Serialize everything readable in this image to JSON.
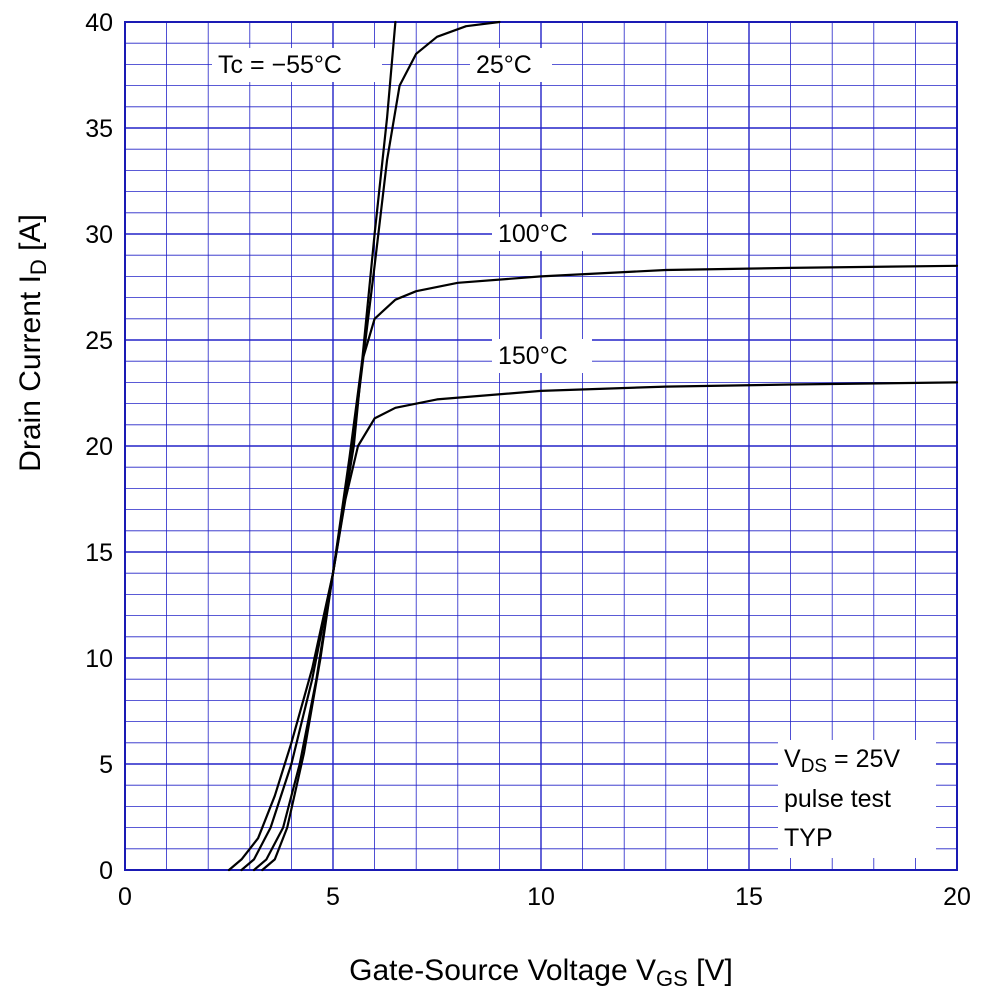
{
  "chart_data": {
    "type": "line",
    "xlabel": {
      "main": "Gate-Source Voltage  V",
      "sub": "GS",
      "unit": "  [V]"
    },
    "ylabel": {
      "main": "Drain Current  I",
      "sub": "D",
      "unit": " [A]"
    },
    "xlim": [
      0,
      20
    ],
    "ylim": [
      0,
      40
    ],
    "x_ticks": [
      "0",
      "5",
      "10",
      "15",
      "20"
    ],
    "y_ticks": [
      "0",
      "5",
      "10",
      "15",
      "20",
      "25",
      "30",
      "35",
      "40"
    ],
    "grid": true,
    "colors": {
      "grid": "#2323c8",
      "curve": "#000000"
    },
    "series": [
      {
        "name": "Tc = −55°C",
        "points": [
          [
            2.5,
            0
          ],
          [
            2.8,
            0.5
          ],
          [
            3.2,
            1.5
          ],
          [
            3.6,
            3.5
          ],
          [
            4.0,
            6.0
          ],
          [
            4.5,
            9.5
          ],
          [
            5.0,
            14.0
          ],
          [
            5.5,
            20.0
          ],
          [
            6.0,
            30.0
          ],
          [
            6.3,
            35.5
          ],
          [
            6.5,
            40.0
          ]
        ]
      },
      {
        "name": "25°C",
        "points": [
          [
            2.8,
            0
          ],
          [
            3.1,
            0.5
          ],
          [
            3.5,
            2.0
          ],
          [
            4.0,
            5.0
          ],
          [
            4.5,
            9.0
          ],
          [
            5.0,
            14.0
          ],
          [
            5.5,
            20.5
          ],
          [
            6.0,
            28.5
          ],
          [
            6.3,
            33.5
          ],
          [
            6.6,
            37.0
          ],
          [
            7.0,
            38.5
          ],
          [
            7.5,
            39.3
          ],
          [
            8.2,
            39.8
          ],
          [
            9.0,
            40.0
          ]
        ]
      },
      {
        "name": "100°C",
        "points": [
          [
            3.1,
            0
          ],
          [
            3.4,
            0.5
          ],
          [
            3.8,
            2.0
          ],
          [
            4.2,
            5.0
          ],
          [
            4.6,
            9.0
          ],
          [
            5.0,
            14.0
          ],
          [
            5.4,
            19.5
          ],
          [
            5.7,
            24.0
          ],
          [
            6.0,
            26.0
          ],
          [
            6.5,
            26.9
          ],
          [
            7.0,
            27.3
          ],
          [
            8.0,
            27.7
          ],
          [
            10.0,
            28.0
          ],
          [
            13.0,
            28.3
          ],
          [
            16.0,
            28.4
          ],
          [
            20.0,
            28.5
          ]
        ]
      },
      {
        "name": "150°C",
        "points": [
          [
            3.3,
            0
          ],
          [
            3.6,
            0.5
          ],
          [
            3.9,
            2.0
          ],
          [
            4.3,
            5.5
          ],
          [
            4.7,
            10.0
          ],
          [
            5.0,
            14.0
          ],
          [
            5.3,
            17.5
          ],
          [
            5.6,
            20.0
          ],
          [
            6.0,
            21.3
          ],
          [
            6.5,
            21.8
          ],
          [
            7.5,
            22.2
          ],
          [
            10.0,
            22.6
          ],
          [
            13.0,
            22.8
          ],
          [
            16.0,
            22.9
          ],
          [
            20.0,
            23.0
          ]
        ]
      }
    ],
    "annotations": {
      "tc_55": "Tc = −55°C",
      "t25": "25°C",
      "t100": "100°C",
      "t150": "150°C",
      "vds_main": "V",
      "vds_sub": "DS",
      "vds_rest": " = 25V",
      "pulse": "pulse  test",
      "typ": "TYP"
    }
  }
}
